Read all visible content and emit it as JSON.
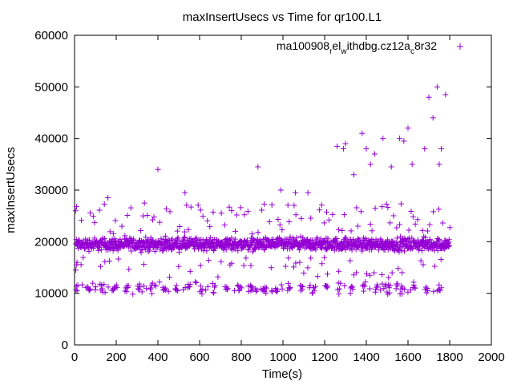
{
  "chart_data": {
    "type": "scatter",
    "title": "maxInsertUsecs vs Time for qr100.L1",
    "xlabel": "Time(s)",
    "ylabel": "maxInsertUsecs",
    "xlim": [
      0,
      2000
    ],
    "ylim": [
      0,
      60000
    ],
    "x_ticks": [
      "0",
      "200",
      "400",
      "600",
      "800",
      "1000",
      "1200",
      "1400",
      "1600",
      "1800",
      "2000"
    ],
    "y_ticks": [
      "0",
      "10000",
      "20000",
      "30000",
      "40000",
      "50000",
      "60000"
    ],
    "legend": {
      "placement": "top-right",
      "label_base": "ma100908",
      "label_sub1": "r",
      "label_mid1": "el",
      "label_sub2": "w",
      "label_mid2": "ithdbg.cz12a",
      "label_sub3": "c",
      "label_tail": "8r32"
    },
    "series": [
      {
        "name": "ma100908_rel_withdbg.cz12a_c8r32",
        "color": "#9400d3",
        "marker": "+",
        "approx_point_count": 1800,
        "main_band": {
          "x_range": [
            5,
            1800
          ],
          "center": 19500,
          "spread": 1800
        },
        "lower_band": {
          "x_range": [
            5,
            1780
          ],
          "center": 11000,
          "spread": 1500
        },
        "outliers_x": [
          5,
          160,
          400,
          530,
          880,
          990,
          1060,
          1120,
          1260,
          1290,
          1300,
          1340,
          1380,
          1400,
          1420,
          1440,
          1480,
          1520,
          1560,
          1580,
          1600,
          1620,
          1680,
          1700,
          1720,
          1740,
          1750,
          1760,
          1780
        ],
        "outliers_y": [
          26000,
          28500,
          34000,
          29500,
          34500,
          30000,
          29500,
          29500,
          38500,
          38000,
          39000,
          33000,
          41000,
          38000,
          35000,
          37000,
          40000,
          34500,
          40000,
          39500,
          42000,
          35000,
          38000,
          48000,
          44000,
          50000,
          35000,
          38000,
          48500
        ]
      }
    ]
  }
}
